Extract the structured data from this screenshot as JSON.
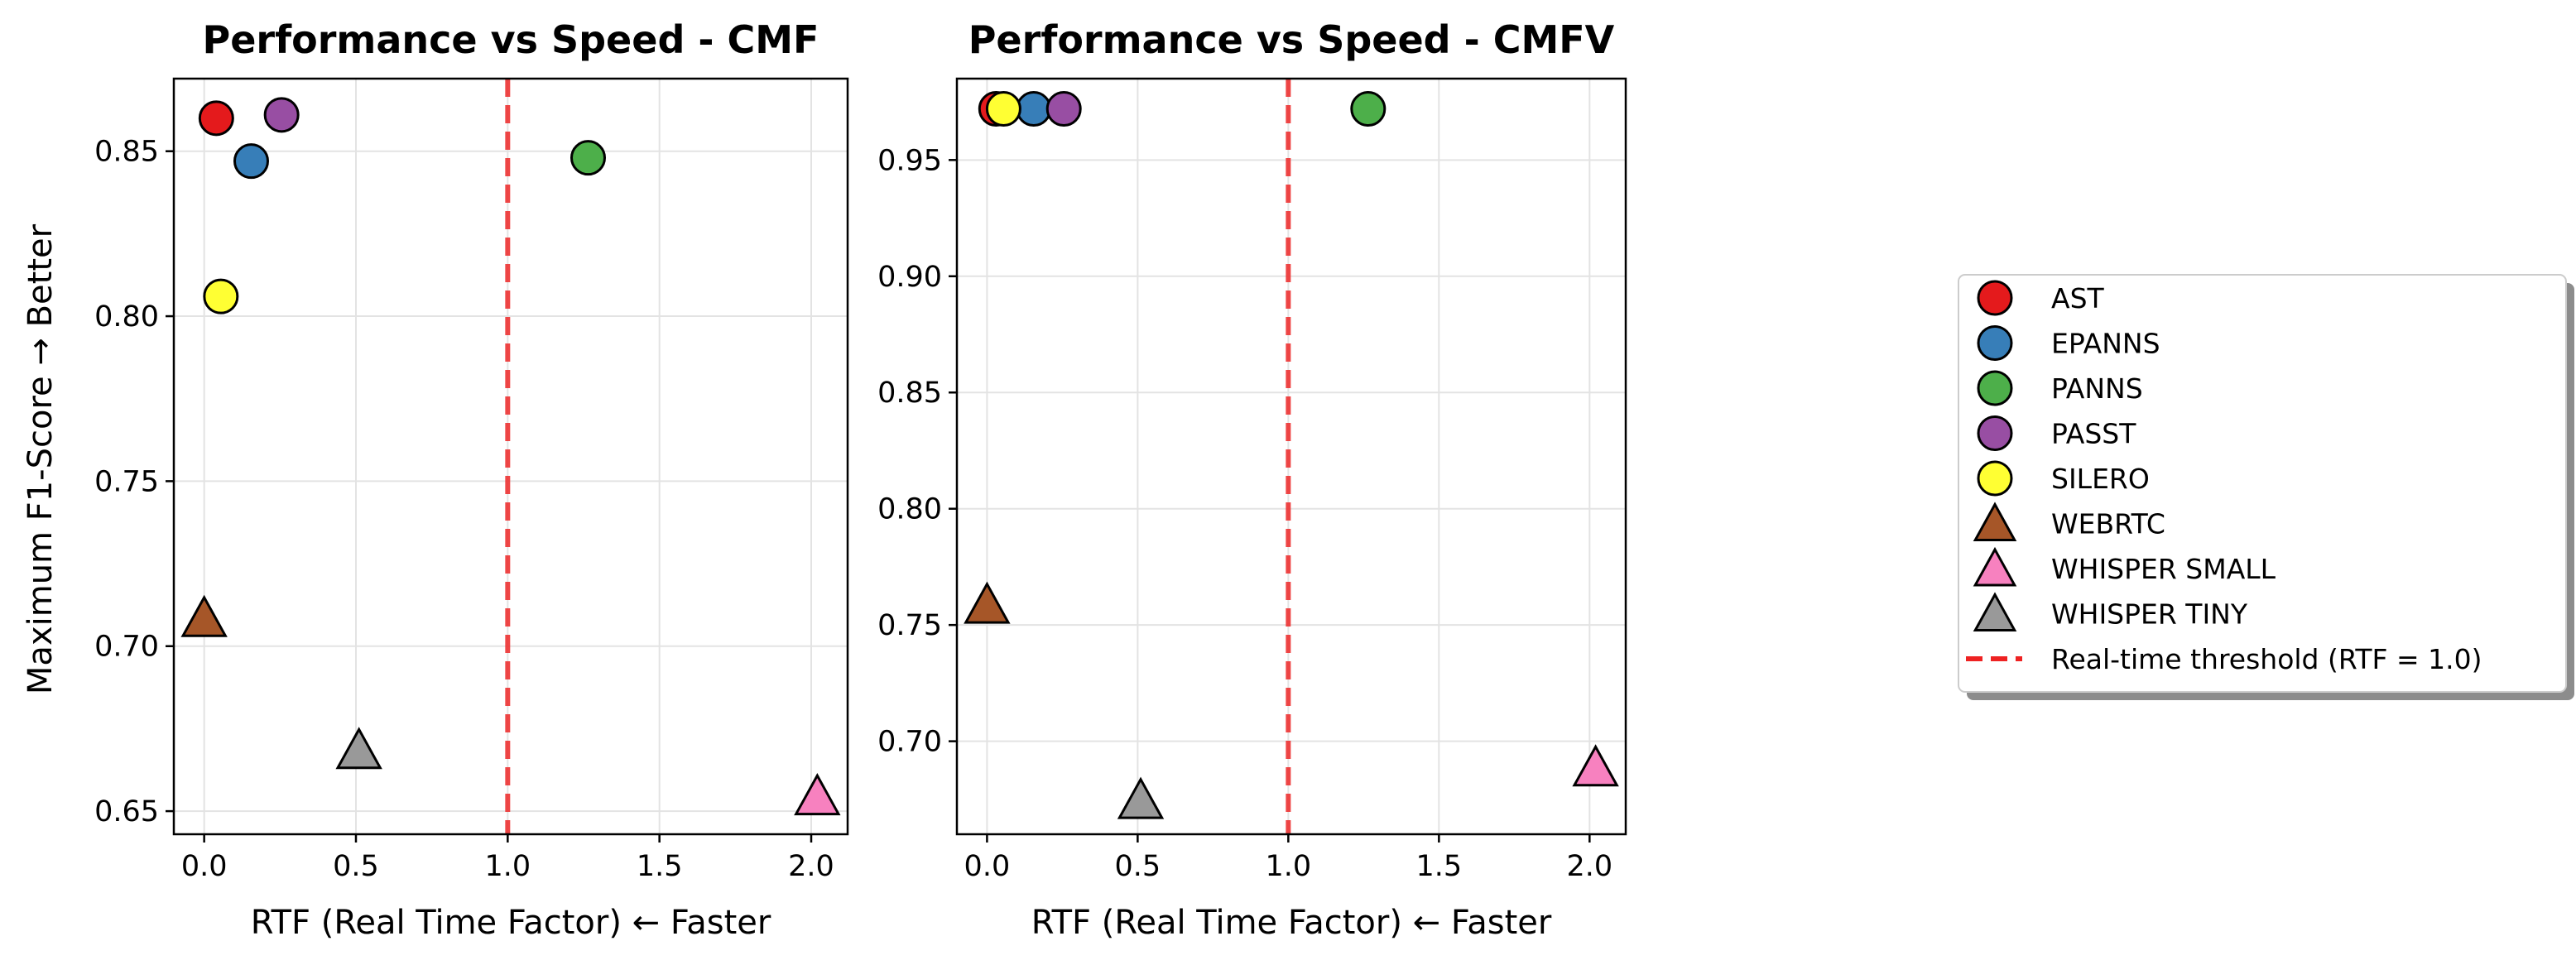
{
  "legend": {
    "placement": "right",
    "entries": [
      {
        "label": "AST",
        "marker": "circle",
        "color": "#e41a1c"
      },
      {
        "label": "EPANNS",
        "marker": "circle",
        "color": "#377eb8"
      },
      {
        "label": "PANNS",
        "marker": "circle",
        "color": "#4daf4a"
      },
      {
        "label": "PASST",
        "marker": "circle",
        "color": "#984ea3"
      },
      {
        "label": "SILERO",
        "marker": "circle",
        "color": "#ffff33"
      },
      {
        "label": "WEBRTC",
        "marker": "triangle",
        "color": "#a65628"
      },
      {
        "label": "WHISPER SMALL",
        "marker": "triangle",
        "color": "#f781bf"
      },
      {
        "label": "WHISPER TINY",
        "marker": "triangle",
        "color": "#999999"
      },
      {
        "label": "Real-time threshold (RTF = 1.0)",
        "marker": "dashed-line",
        "color": "#ee2222"
      }
    ]
  },
  "chart_data": [
    {
      "type": "scatter",
      "title": "Performance vs Speed - CMF",
      "xlabel": "RTF (Real Time Factor) ← Faster",
      "ylabel": "Maximum F1-Score → Better",
      "xlim": [
        -0.1,
        2.12
      ],
      "ylim": [
        0.643,
        0.872
      ],
      "xticks": [
        0.0,
        0.5,
        1.0,
        1.5,
        2.0
      ],
      "xtick_labels": [
        "0.0",
        "0.5",
        "1.0",
        "1.5",
        "2.0"
      ],
      "yticks": [
        0.65,
        0.7,
        0.75,
        0.8,
        0.85
      ],
      "ytick_labels": [
        "0.65",
        "0.70",
        "0.75",
        "0.80",
        "0.85"
      ],
      "grid": true,
      "threshold_x": 1.0,
      "series": [
        {
          "name": "AST",
          "marker": "circle",
          "color": "#e41a1c",
          "x": 0.04,
          "y": 0.86
        },
        {
          "name": "EPANNS",
          "marker": "circle",
          "color": "#377eb8",
          "x": 0.155,
          "y": 0.847
        },
        {
          "name": "PANNS",
          "marker": "circle",
          "color": "#4daf4a",
          "x": 1.265,
          "y": 0.848
        },
        {
          "name": "PASST",
          "marker": "circle",
          "color": "#984ea3",
          "x": 0.255,
          "y": 0.861
        },
        {
          "name": "SILERO",
          "marker": "circle",
          "color": "#ffff33",
          "x": 0.055,
          "y": 0.806
        },
        {
          "name": "WEBRTC",
          "marker": "triangle",
          "color": "#a65628",
          "x": 0.0,
          "y": 0.708
        },
        {
          "name": "WHISPER SMALL",
          "marker": "triangle",
          "color": "#f781bf",
          "x": 2.02,
          "y": 0.654
        },
        {
          "name": "WHISPER TINY",
          "marker": "triangle",
          "color": "#999999",
          "x": 0.51,
          "y": 0.668
        }
      ]
    },
    {
      "type": "scatter",
      "title": "Performance vs Speed - CMFV",
      "xlabel": "RTF (Real Time Factor) ← Faster",
      "ylabel": "",
      "xlim": [
        -0.1,
        2.12
      ],
      "ylim": [
        0.66,
        0.985
      ],
      "xticks": [
        0.0,
        0.5,
        1.0,
        1.5,
        2.0
      ],
      "xtick_labels": [
        "0.0",
        "0.5",
        "1.0",
        "1.5",
        "2.0"
      ],
      "yticks": [
        0.7,
        0.75,
        0.8,
        0.85,
        0.9,
        0.95
      ],
      "ytick_labels": [
        "0.70",
        "0.75",
        "0.80",
        "0.85",
        "0.90",
        "0.95"
      ],
      "grid": true,
      "threshold_x": 1.0,
      "series": [
        {
          "name": "AST",
          "marker": "circle",
          "color": "#e41a1c",
          "x": 0.03,
          "y": 0.972
        },
        {
          "name": "EPANNS",
          "marker": "circle",
          "color": "#377eb8",
          "x": 0.155,
          "y": 0.972
        },
        {
          "name": "PANNS",
          "marker": "circle",
          "color": "#4daf4a",
          "x": 1.265,
          "y": 0.972
        },
        {
          "name": "PASST",
          "marker": "circle",
          "color": "#984ea3",
          "x": 0.255,
          "y": 0.972
        },
        {
          "name": "SILERO",
          "marker": "circle",
          "color": "#ffff33",
          "x": 0.055,
          "y": 0.972
        },
        {
          "name": "WEBRTC",
          "marker": "triangle",
          "color": "#a65628",
          "x": 0.0,
          "y": 0.758
        },
        {
          "name": "WHISPER SMALL",
          "marker": "triangle",
          "color": "#f781bf",
          "x": 2.02,
          "y": 0.688
        },
        {
          "name": "WHISPER TINY",
          "marker": "triangle",
          "color": "#999999",
          "x": 0.51,
          "y": 0.674
        }
      ]
    }
  ]
}
